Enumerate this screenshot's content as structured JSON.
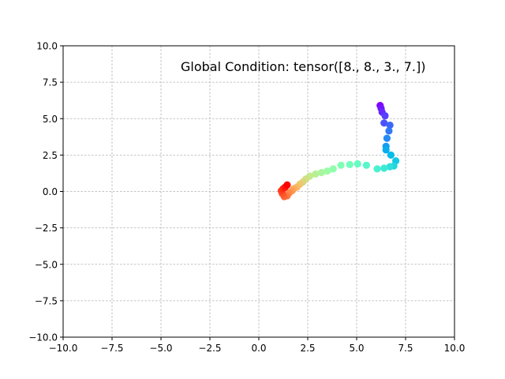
{
  "chart_data": {
    "type": "scatter",
    "annotation": "Global Condition: tensor([8., 8., 3., 7.])",
    "xlim": [
      -10,
      10
    ],
    "ylim": [
      -10,
      10
    ],
    "xticks": [
      -10,
      -7.5,
      -5,
      -2.5,
      0,
      2.5,
      5,
      7.5,
      10
    ],
    "yticks": [
      -10,
      -7.5,
      -5,
      -2.5,
      0,
      2.5,
      5,
      7.5,
      10
    ],
    "xtick_labels": [
      "−10.0",
      "−7.5",
      "−5.0",
      "−2.5",
      "0.0",
      "2.5",
      "5.0",
      "7.5",
      "10.0"
    ],
    "ytick_labels": [
      "−10.0",
      "−7.5",
      "−5.0",
      "−2.5",
      "0.0",
      "2.5",
      "5.0",
      "7.5",
      "10.0"
    ],
    "grid": true,
    "grid_style": "dashed",
    "colormap": "rainbow",
    "color_order": "first point violet, last point red",
    "points": [
      {
        "x": 6.2,
        "y": 5.9
      },
      {
        "x": 6.25,
        "y": 5.7
      },
      {
        "x": 6.3,
        "y": 5.45
      },
      {
        "x": 6.45,
        "y": 5.2
      },
      {
        "x": 6.4,
        "y": 4.7
      },
      {
        "x": 6.7,
        "y": 4.55
      },
      {
        "x": 6.65,
        "y": 4.15
      },
      {
        "x": 6.55,
        "y": 3.65
      },
      {
        "x": 6.5,
        "y": 3.1
      },
      {
        "x": 6.5,
        "y": 2.85
      },
      {
        "x": 6.75,
        "y": 2.5
      },
      {
        "x": 7.0,
        "y": 2.1
      },
      {
        "x": 6.9,
        "y": 1.75
      },
      {
        "x": 6.7,
        "y": 1.7
      },
      {
        "x": 6.4,
        "y": 1.6
      },
      {
        "x": 6.05,
        "y": 1.55
      },
      {
        "x": 5.5,
        "y": 1.8
      },
      {
        "x": 5.05,
        "y": 1.9
      },
      {
        "x": 4.65,
        "y": 1.85
      },
      {
        "x": 4.2,
        "y": 1.8
      },
      {
        "x": 3.8,
        "y": 1.55
      },
      {
        "x": 3.5,
        "y": 1.4
      },
      {
        "x": 3.2,
        "y": 1.3
      },
      {
        "x": 2.9,
        "y": 1.2
      },
      {
        "x": 2.6,
        "y": 1.05
      },
      {
        "x": 2.4,
        "y": 0.85
      },
      {
        "x": 2.25,
        "y": 0.65
      },
      {
        "x": 2.1,
        "y": 0.5
      },
      {
        "x": 1.95,
        "y": 0.3
      },
      {
        "x": 1.8,
        "y": 0.2
      },
      {
        "x": 1.7,
        "y": 0.05
      },
      {
        "x": 1.55,
        "y": -0.1
      },
      {
        "x": 1.45,
        "y": -0.3
      },
      {
        "x": 1.3,
        "y": -0.35
      },
      {
        "x": 1.2,
        "y": -0.15
      },
      {
        "x": 1.15,
        "y": 0.05
      },
      {
        "x": 1.25,
        "y": 0.2
      },
      {
        "x": 1.35,
        "y": 0.3
      },
      {
        "x": 1.45,
        "y": 0.45
      }
    ]
  }
}
